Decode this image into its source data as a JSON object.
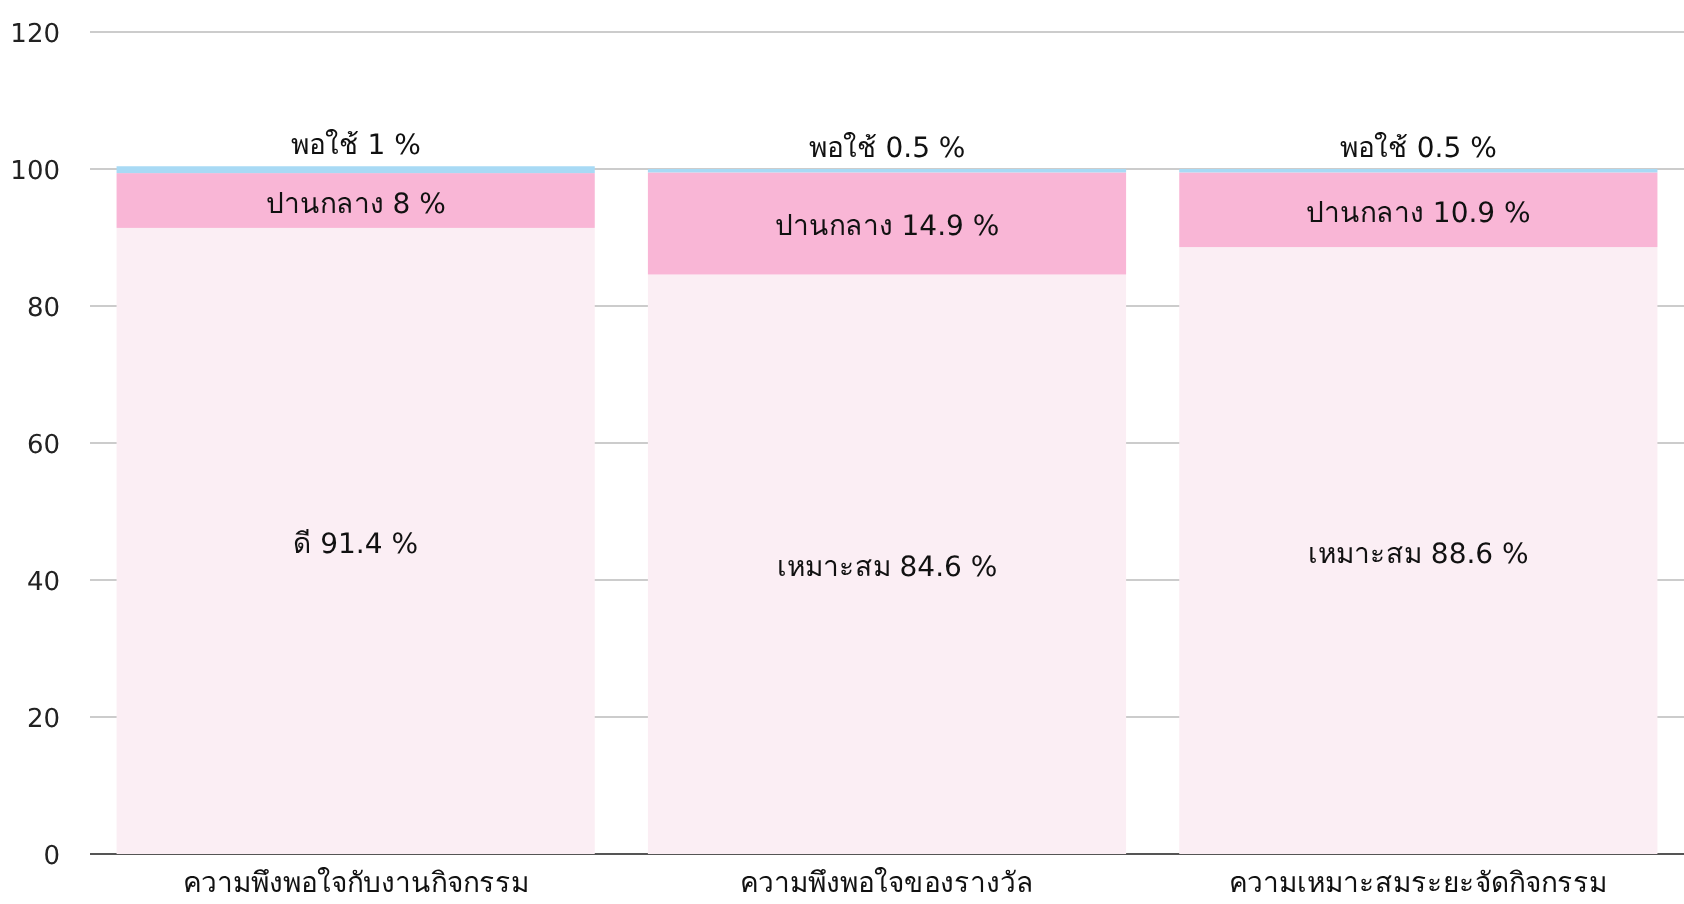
{
  "chart_data": {
    "type": "bar",
    "stacked": true,
    "grid": "y",
    "categories": [
      "ความพึงพอใจกับงานกิจกรรม",
      "ความพึงพอใจของรางวัล",
      "ความเหมาะสมระยะจัดกิจกรรม"
    ],
    "ylim": [
      0,
      120
    ],
    "yticks": [
      0,
      20,
      40,
      60,
      80,
      100,
      120
    ],
    "series": [
      {
        "color": "#fbeef4",
        "values": [
          91.4,
          84.6,
          88.6
        ],
        "value_labels": [
          "ดี 91.4 %",
          "เหมาะสม 84.6 %",
          "เหมาะสม 88.6 %"
        ]
      },
      {
        "color": "#f9b6d6",
        "values": [
          8,
          14.9,
          10.9
        ],
        "value_labels": [
          "ปานกลาง 8 %",
          "ปานกลาง 14.9 %",
          "ปานกลาง 10.9 %"
        ]
      },
      {
        "color": "#a8daf5",
        "values": [
          1,
          0.5,
          0.5
        ],
        "value_labels": [
          "พอใช้ 1 %",
          "พอใช้ 0.5 %",
          "พอใช้ 0.5 %"
        ]
      }
    ]
  }
}
